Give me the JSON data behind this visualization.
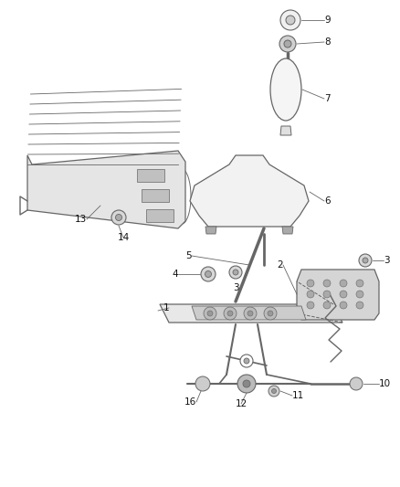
{
  "bg_color": "#ffffff",
  "line_color": "#666666",
  "label_color": "#111111",
  "fig_width": 4.38,
  "fig_height": 5.33,
  "dpi": 100
}
